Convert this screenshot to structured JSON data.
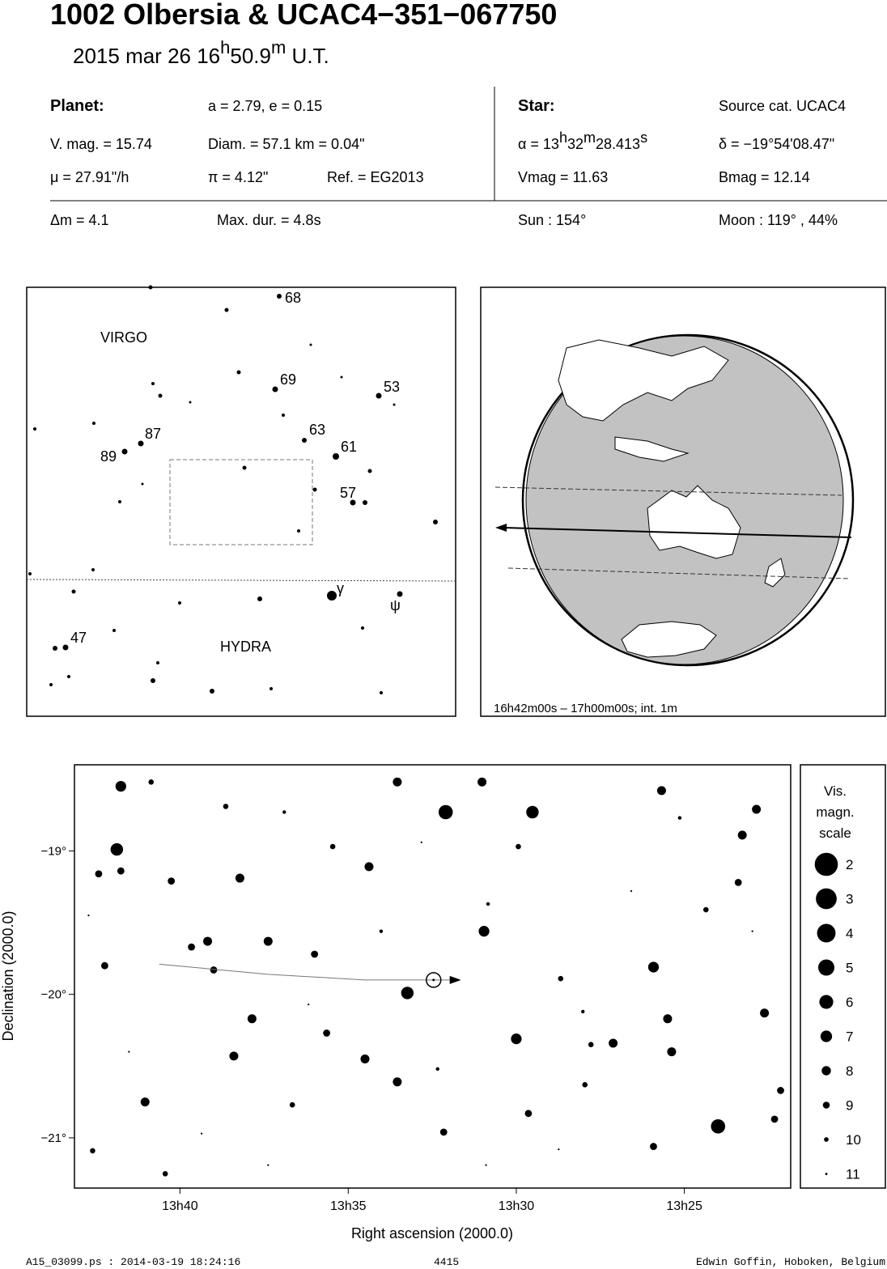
{
  "header": {
    "title": "1002 Olbersia  &  UCAC4−351−067750",
    "date": [
      "2015 mar 26  16",
      "h",
      "50.9",
      "m",
      " U.T."
    ]
  },
  "planet": {
    "heading": "Planet:",
    "orbit": "a = 2.79, e = 0.15",
    "vmag": "V. mag. = 15.74",
    "diam": "Diam. = 57.1 km = 0.04\"",
    "mu": "μ =  27.91\"/h",
    "pi": "π =  4.12\"",
    "ref": "Ref. = EG2013"
  },
  "star": {
    "heading": "Star:",
    "source": "Source cat.  UCAC4",
    "ra": [
      "α = 13",
      "h",
      "32",
      "m",
      "28.413",
      "s"
    ],
    "dec": "δ = −19°54'08.47\"",
    "vmag": "Vmag = 11.63",
    "bmag": "Bmag = 12.14"
  },
  "event": {
    "dm": "Δm = 4.1",
    "maxdur": "Max. dur. = 4.8s",
    "sun": "Sun : 154°",
    "moon": "Moon : 119° , 44%"
  },
  "finder": {
    "labels": [
      "68",
      "69",
      "53",
      "87",
      "63",
      "61",
      "89",
      "57",
      "γ",
      "ψ",
      "47",
      "VIRGO",
      "HYDRA"
    ]
  },
  "globe": {
    "caption": "16h42m00s – 17h00m00s; int.  1m"
  },
  "chart_data": {
    "type": "scatter",
    "x_label": "Right ascension (2000.0)",
    "y_label": "Declination (2000.0)",
    "xlim": [
      13.719,
      13.364
    ],
    "ylim": [
      -21.35,
      -18.4
    ],
    "xticks": [
      {
        "value": 13.6667,
        "label": "13h40"
      },
      {
        "value": 13.5833,
        "label": "13h35"
      },
      {
        "value": 13.5,
        "label": "13h30"
      },
      {
        "value": 13.4167,
        "label": "13h25"
      }
    ],
    "yticks": [
      {
        "value": -19,
        "label": "−19°"
      },
      {
        "value": -20,
        "label": "−20°"
      },
      {
        "value": -21,
        "label": "−21°"
      }
    ],
    "x": [
      13.696,
      13.698,
      13.535,
      13.492,
      13.4,
      13.516,
      13.554,
      13.5,
      13.432,
      13.559,
      13.637,
      13.64,
      13.631,
      13.653,
      13.573,
      13.575,
      13.623,
      13.452,
      13.423,
      13.425,
      13.684,
      13.377,
      13.381,
      13.559,
      13.517,
      13.428,
      13.388,
      13.707,
      13.661,
      13.696,
      13.704,
      13.65,
      13.6,
      13.594,
      13.671,
      13.39,
      13.369,
      13.372,
      13.494,
      13.536,
      13.432,
      13.71,
      13.674,
      13.611,
      13.478,
      13.466,
      13.591,
      13.681,
      13.644,
      13.499,
      13.406,
      13.463,
      13.514,
      13.615,
      13.539,
      13.467,
      13.419,
      13.567,
      13.692,
      13.656,
      13.603,
      13.515,
      13.443,
      13.383,
      13.623,
      13.479,
      13.712,
      13.547
    ],
    "y": [
      -18.55,
      -18.99,
      -18.73,
      -18.73,
      -20.92,
      -19.56,
      -19.99,
      -20.31,
      -19.81,
      -20.61,
      -19.19,
      -20.43,
      -20.17,
      -19.63,
      -19.11,
      -20.45,
      -19.63,
      -20.34,
      -20.4,
      -20.17,
      -20.75,
      -20.13,
      -18.71,
      -18.52,
      -18.52,
      -18.58,
      -18.89,
      -19.16,
      -19.67,
      -19.14,
      -19.8,
      -19.83,
      -19.72,
      -20.27,
      -19.21,
      -19.22,
      -20.67,
      -20.87,
      -20.83,
      -20.96,
      -21.06,
      -21.09,
      -21.25,
      -20.77,
      -19.89,
      -20.63,
      -18.97,
      -18.52,
      -18.69,
      -18.97,
      -19.41,
      -20.35,
      -19.37,
      -18.73,
      -20.52,
      -20.12,
      -18.77,
      -19.56,
      -20.4,
      -20.97,
      -20.07,
      -21.19,
      -19.28,
      -19.56,
      -21.19,
      -21.08,
      -19.45,
      -18.94
    ],
    "magnitudes": [
      6,
      5,
      4,
      5,
      4,
      6,
      5,
      6,
      6,
      7,
      7,
      7,
      7,
      7,
      7,
      7,
      7,
      7,
      7,
      7,
      7,
      7,
      7,
      7,
      7,
      7,
      7,
      8,
      8,
      8,
      8,
      8,
      8,
      8,
      8,
      8,
      8,
      8,
      8,
      8,
      8,
      9,
      9,
      9,
      9,
      9,
      9,
      9,
      9,
      9,
      9,
      9,
      10,
      10,
      10,
      10,
      10,
      10,
      11,
      11,
      11,
      11,
      11,
      11,
      11,
      11,
      11,
      11
    ],
    "track": {
      "x": [
        13.677,
        13.623,
        13.575,
        13.533
      ],
      "y": [
        -19.79,
        -19.86,
        -19.9,
        -19.9
      ]
    },
    "target": {
      "x": 13.541,
      "y": -19.9
    },
    "legend": {
      "title": [
        "Vis.",
        "magn.",
        "scale"
      ],
      "magnitudes": [
        2,
        3,
        4,
        5,
        6,
        7,
        8,
        9,
        10,
        11
      ]
    }
  },
  "footer": {
    "file": "A15_03099.ps : 2014-03-19 18:24:16",
    "number": "4415",
    "author": "Edwin Goffin, Hoboken, Belgium"
  }
}
